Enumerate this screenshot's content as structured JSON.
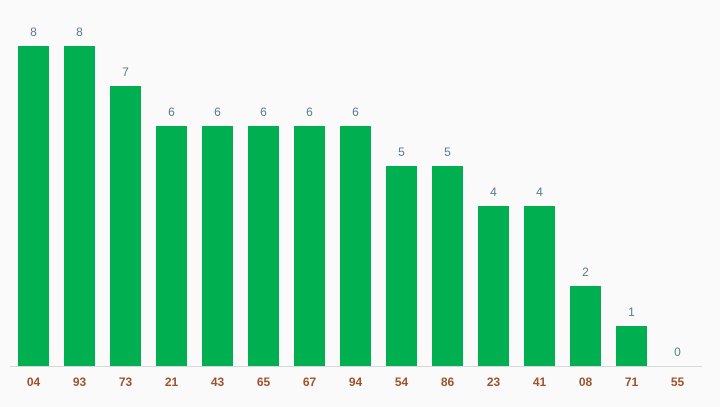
{
  "chart_data": {
    "type": "bar",
    "categories": [
      "04",
      "93",
      "73",
      "21",
      "43",
      "65",
      "67",
      "94",
      "54",
      "86",
      "23",
      "41",
      "08",
      "71",
      "55"
    ],
    "values": [
      8,
      8,
      7,
      6,
      6,
      6,
      6,
      6,
      5,
      5,
      4,
      4,
      2,
      1,
      0
    ],
    "color": "#00b050"
  }
}
